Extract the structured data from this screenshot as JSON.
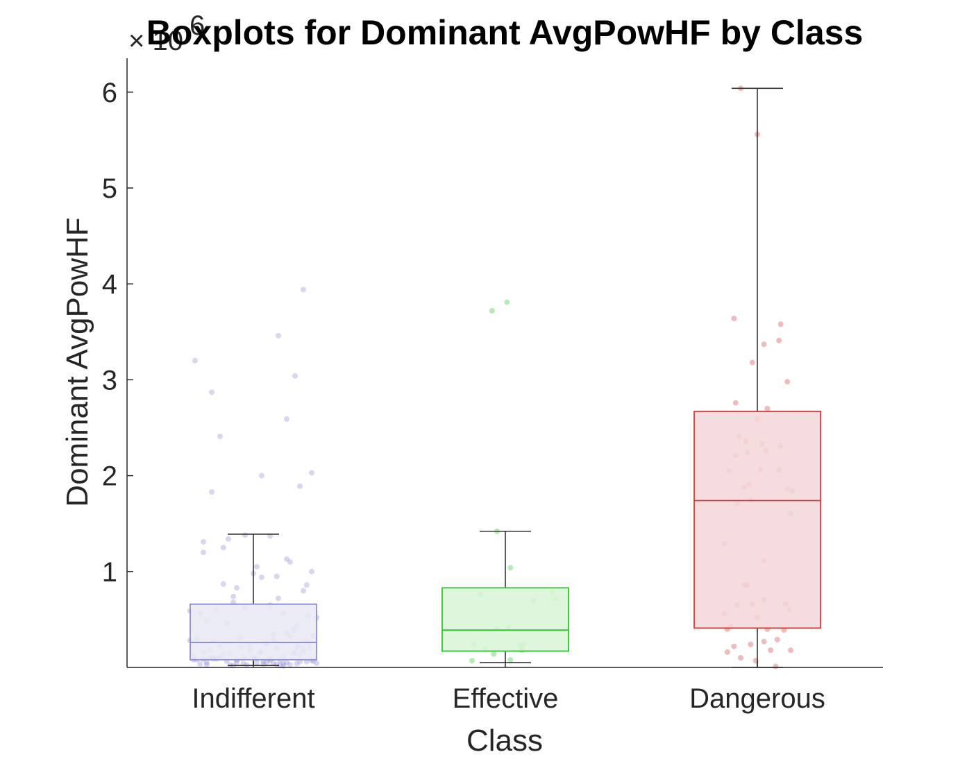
{
  "chart_data": {
    "type": "box",
    "title": "Boxplots for Dominant AvgPowHF by Class",
    "xlabel": "Class",
    "ylabel": "Dominant AvgPowHF",
    "y_exponent_base": "× 10",
    "y_exponent": "6",
    "ylim": [
      0,
      6400000
    ],
    "yticks": [
      1000000,
      2000000,
      3000000,
      4000000,
      5000000,
      6000000
    ],
    "ytick_labels": [
      "1",
      "2",
      "3",
      "4",
      "5",
      "6"
    ],
    "categories": [
      "Indifferent",
      "Effective",
      "Dangerous"
    ],
    "colors": {
      "Indifferent": "#8c8cd0",
      "Effective": "#2fc42f",
      "Dangerous": "#d23c3c"
    },
    "fills": {
      "Indifferent": "#e9e9f4",
      "Effective": "#d8f5d6",
      "Dangerous": "#f3d6d8"
    },
    "boxes": [
      {
        "category": "Indifferent",
        "whisker_low": 20000,
        "q1": 80000,
        "median": 260000,
        "q3": 660000,
        "whisker_high": 1390000
      },
      {
        "category": "Effective",
        "whisker_low": 50000,
        "q1": 170000,
        "median": 390000,
        "q3": 830000,
        "whisker_high": 1420000
      },
      {
        "category": "Dangerous",
        "whisker_low": 0,
        "q1": 410000,
        "median": 1740000,
        "q3": 2670000,
        "whisker_high": 6040000
      }
    ],
    "points": [
      {
        "category": "Indifferent",
        "jitter": [
          -0.35,
          0.3,
          0.15,
          -0.25,
          -0.2,
          0.25,
          0.05,
          -0.25,
          0.2,
          -0.05,
          0.35,
          -0.15,
          0.02,
          -0.3,
          0.28,
          -0.1,
          0.22,
          0.35,
          0.1,
          -0.18,
          0.15,
          -0.32,
          0.05,
          -0.22,
          0.3,
          0.18,
          -0.12,
          0.38,
          -0.28,
          -0.05,
          0.26,
          0.12,
          -0.38,
          0.33,
          -0.08,
          0.2,
          -0.24,
          0.08,
          0.36,
          -0.16,
          0.24,
          -0.34,
          0.14,
          -0.02,
          0.31,
          -0.26,
          0.04,
          0.27,
          -0.14,
          0.18,
          -0.3,
          0.1,
          0.34,
          -0.2,
          0.06,
          -0.36,
          0.28,
          -0.06,
          0.16,
          -0.28,
          0.22,
          0.0,
          -0.12,
          0.32,
          -0.22,
          0.12,
          -0.04,
          0.25,
          -0.32,
          0.08,
          0.3,
          -0.1,
          0.18,
          -0.24,
          0.36,
          0.02,
          -0.18,
          0.26,
          -0.3,
          0.14,
          -0.08,
          0.2,
          -0.36,
          0.1,
          0.33,
          -0.14,
          0.04,
          0.28,
          -0.26,
          0.16,
          -0.02,
          0.38,
          -0.2,
          0.06,
          0.24,
          -0.34,
          0.12,
          -0.1,
          0.3,
          -0.16,
          0.22,
          -0.28,
          0.08,
          0.35,
          -0.06,
          0.18,
          -0.38,
          0.02,
          0.26,
          -0.24,
          0.14,
          -0.12,
          0.32,
          -0.18,
          0.1,
          -0.3,
          0.2
        ],
        "values": [
          3200000,
          3940000,
          3460000,
          2870000,
          2410000,
          3040000,
          2000000,
          1830000,
          2590000,
          1380000,
          2030000,
          1340000,
          1050000,
          1200000,
          1890000,
          830000,
          1100000,
          1000000,
          650000,
          870000,
          720000,
          560000,
          940000,
          600000,
          800000,
          560000,
          680000,
          520000,
          480000,
          620000,
          430000,
          350000,
          590000,
          540000,
          310000,
          360000,
          280000,
          250000,
          330000,
          460000,
          390000,
          300000,
          200000,
          240000,
          270000,
          180000,
          150000,
          220000,
          140000,
          120000,
          160000,
          90000,
          200000,
          110000,
          60000,
          80000,
          130000,
          40000,
          70000,
          50000,
          30000,
          100000,
          20000,
          60000,
          90000,
          45000,
          25000,
          140000,
          35000,
          55000,
          170000,
          75000,
          15000,
          110000,
          65000,
          95000,
          130000,
          40000,
          85000,
          30000,
          210000,
          50000,
          120000,
          70000,
          260000,
          25000,
          160000,
          60000,
          100000,
          20000,
          180000,
          45000,
          230000,
          35000,
          150000,
          80000,
          290000,
          55000,
          190000,
          65000,
          320000,
          30000,
          250000,
          75000,
          110000,
          40000,
          280000,
          50000,
          200000,
          90000,
          950000,
          740000,
          860000,
          1250000,
          1370000,
          1310000,
          1130000,
          980000
        ],
        "rng_note": ""
      },
      {
        "category": "Effective",
        "jitter": [
          -0.08,
          0.01,
          -0.05,
          0.03,
          -0.15,
          0.28,
          0.17,
          0.02,
          -0.05,
          -0.19,
          0.11,
          0.1,
          0.09,
          -0.12,
          -0.07,
          0.03,
          -0.2,
          0.3
        ],
        "values": [
          3720000,
          3810000,
          1420000,
          1040000,
          760000,
          780000,
          700000,
          410000,
          400000,
          240000,
          240000,
          180000,
          230000,
          190000,
          140000,
          80000,
          70000,
          720000
        ]
      },
      {
        "category": "Dangerous",
        "jitter": [
          -0.1,
          0.0,
          -0.14,
          0.14,
          0.13,
          0.04,
          -0.03,
          0.18,
          -0.13,
          0.06,
          0.0,
          -0.11,
          0.14,
          0.03,
          -0.07,
          0.05,
          -0.06,
          -0.13,
          -0.17,
          0.02,
          -0.05,
          0.13,
          -0.08,
          0.18,
          0.21,
          -0.04,
          -0.12,
          0.2,
          -0.2,
          0.04,
          -0.08,
          -0.06,
          0.04,
          0.17,
          -0.03,
          -0.12,
          0.19,
          -0.2,
          0.0,
          -0.16,
          -0.18,
          0.06,
          0.16,
          0.12,
          -0.04,
          0.04,
          -0.14,
          0.2,
          0.08,
          -0.18,
          -0.1,
          -0.01,
          0.11
        ],
        "values": [
          6040000,
          5560000,
          3640000,
          3580000,
          3410000,
          3370000,
          3180000,
          2980000,
          2760000,
          2700000,
          2590000,
          2410000,
          2310000,
          2330000,
          2360000,
          2260000,
          2240000,
          2210000,
          2050000,
          2060000,
          1910000,
          2060000,
          1880000,
          1860000,
          1840000,
          1750000,
          1710000,
          1600000,
          1290000,
          1110000,
          860000,
          860000,
          710000,
          660000,
          660000,
          650000,
          600000,
          560000,
          520000,
          430000,
          400000,
          400000,
          390000,
          290000,
          240000,
          270000,
          220000,
          180000,
          180000,
          160000,
          100000,
          70000,
          10000
        ]
      }
    ]
  }
}
